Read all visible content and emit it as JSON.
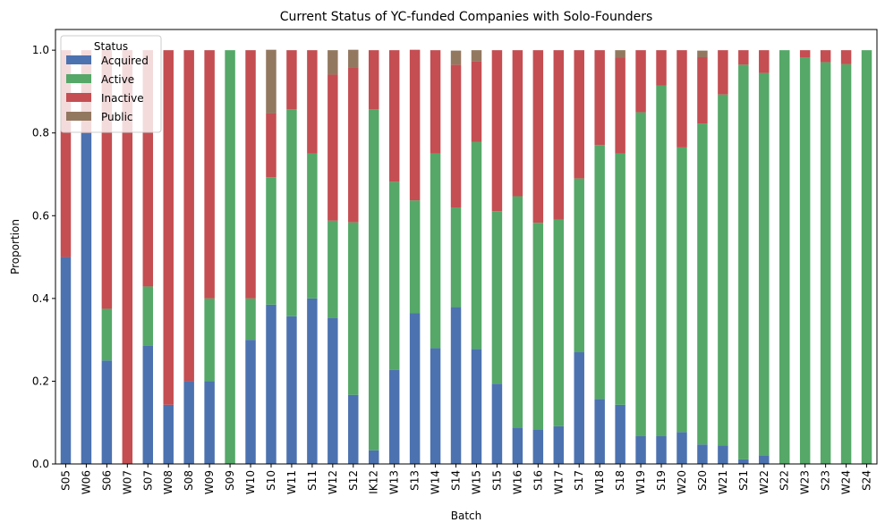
{
  "chart_data": {
    "type": "bar",
    "stacked": true,
    "title": "Current Status of YC-funded Companies with Solo-Founders",
    "xlabel": "Batch",
    "ylabel": "Proportion",
    "ylim": [
      0,
      1.05
    ],
    "yticks": [
      "0.0",
      "0.2",
      "0.4",
      "0.6",
      "0.8",
      "1.0"
    ],
    "grid": false,
    "legend": {
      "title": "Status",
      "placement": "top-left"
    },
    "categories": [
      "S05",
      "W06",
      "S06",
      "W07",
      "S07",
      "W08",
      "S08",
      "W09",
      "S09",
      "W10",
      "S10",
      "W11",
      "S11",
      "W12",
      "S12",
      "IK12",
      "W13",
      "S13",
      "W14",
      "S14",
      "W15",
      "S15",
      "W16",
      "S16",
      "W17",
      "S17",
      "W18",
      "S18",
      "W19",
      "S19",
      "W20",
      "S20",
      "W21",
      "S21",
      "W22",
      "S22",
      "W23",
      "S23",
      "W24",
      "S24"
    ],
    "series": [
      {
        "name": "Acquired",
        "color": "#4c72b0",
        "values": [
          0.5,
          0.8,
          0.25,
          0,
          0.286,
          0.143,
          0.2,
          0.2,
          0,
          0.3,
          0.385,
          0.357,
          0.4,
          0.353,
          0.167,
          0.033,
          0.227,
          0.364,
          0.28,
          0.379,
          0.278,
          0.194,
          0.088,
          0.083,
          0.091,
          0.27,
          0.157,
          0.143,
          0.067,
          0.067,
          0.077,
          0.047,
          0.045,
          0.011,
          0.021,
          0,
          0,
          0,
          0,
          0
        ]
      },
      {
        "name": "Active",
        "color": "#55a868",
        "values": [
          0,
          0,
          0.125,
          0,
          0.143,
          0,
          0,
          0.2,
          1,
          0.1,
          0.308,
          0.5,
          0.35,
          0.235,
          0.417,
          0.824,
          0.455,
          0.273,
          0.47,
          0.241,
          0.5,
          0.417,
          0.559,
          0.5,
          0.5,
          0.42,
          0.614,
          0.607,
          0.783,
          0.848,
          0.688,
          0.776,
          0.848,
          0.954,
          0.924,
          1,
          0.983,
          0.971,
          0.966,
          1
        ]
      },
      {
        "name": "Inactive",
        "color": "#c44e52",
        "values": [
          0.5,
          0.2,
          0.625,
          1,
          0.571,
          0.857,
          0.8,
          0.6,
          0,
          0.6,
          0.154,
          0.143,
          0.25,
          0.353,
          0.375,
          0.143,
          0.318,
          0.364,
          0.25,
          0.345,
          0.195,
          0.389,
          0.353,
          0.417,
          0.409,
          0.31,
          0.229,
          0.232,
          0.15,
          0.085,
          0.235,
          0.16,
          0.107,
          0.035,
          0.055,
          0,
          0.017,
          0.029,
          0.034,
          0
        ]
      },
      {
        "name": "Public",
        "color": "#937860",
        "values": [
          0,
          0,
          0,
          0,
          0,
          0,
          0,
          0,
          0,
          0,
          0.154,
          0,
          0,
          0.059,
          0.042,
          0,
          0,
          0,
          0,
          0.034,
          0.027,
          0,
          0,
          0,
          0,
          0,
          0,
          0.018,
          0,
          0,
          0,
          0.016,
          0,
          0,
          0,
          0,
          0,
          0,
          0,
          0
        ]
      }
    ]
  }
}
